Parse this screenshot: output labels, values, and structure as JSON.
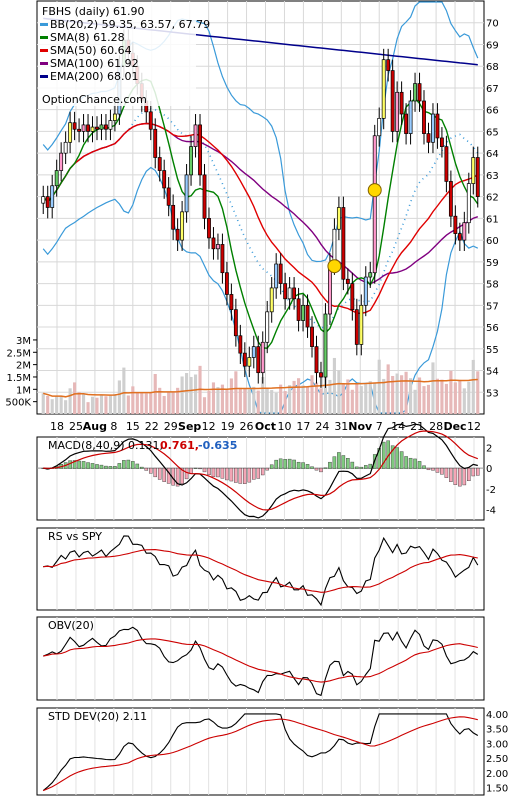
{
  "chart_data": {
    "type": "line",
    "ticker": "FBHS",
    "period": "daily",
    "last_price": "61.90",
    "watermark": "OptionChance.com",
    "main_legend": [
      {
        "label": "FBHS (daily) 61.90",
        "color": "#000000"
      },
      {
        "label": "BB(20,2) 59.35, 63.57, 67.79",
        "color": "#3a9ad9"
      },
      {
        "label": "SMA(8) 61.28",
        "color": "#008000"
      },
      {
        "label": "SMA(50) 60.64",
        "color": "#e00000"
      },
      {
        "label": "SMA(100) 61.92",
        "color": "#800080"
      },
      {
        "label": "EMA(200) 68.01",
        "color": "#00008b"
      }
    ],
    "y_ticks": [
      53,
      54,
      55,
      56,
      57,
      58,
      59,
      60,
      61,
      62,
      63,
      64,
      65,
      66,
      67,
      68,
      69,
      70
    ],
    "ylim": [
      52,
      71
    ],
    "x_ticks": [
      "18",
      "25",
      "Aug",
      "8",
      "15",
      "22",
      "29",
      "Sep",
      "12",
      "19",
      "26",
      "Oct",
      "10",
      "17",
      "24",
      "31",
      "Nov",
      "7",
      "14",
      "21",
      "28",
      "Dec",
      "12"
    ],
    "volume_ticks": [
      "3M",
      "2.5M",
      "2M",
      "1.5M",
      "1M",
      "500K"
    ],
    "vol_lim": [
      0,
      3200000
    ],
    "close": [
      62.0,
      61.5,
      62.5,
      63.2,
      64.0,
      64.5,
      65.4,
      65.1,
      65.0,
      65.3,
      65.0,
      65.2,
      65.1,
      65.3,
      65.1,
      65.5,
      65.8,
      68.0,
      69.2,
      68.6,
      68.0,
      67.2,
      66.4,
      65.9,
      65.1,
      63.8,
      63.2,
      62.4,
      61.6,
      60.5,
      60.0,
      61.3,
      63.0,
      64.3,
      65.3,
      63.0,
      61.0,
      60.1,
      59.6,
      59.8,
      58.5,
      57.5,
      56.8,
      55.6,
      54.8,
      54.2,
      54.6,
      55.1,
      53.9,
      55.3,
      56.7,
      57.8,
      58.9,
      58.0,
      57.3,
      57.8,
      57.3,
      56.3,
      57.0,
      56.0,
      55.1,
      53.9,
      53.7,
      56.6,
      58.9,
      60.5,
      61.5,
      58.2,
      58.0,
      56.8,
      55.2,
      57.0,
      58.3,
      58.5,
      64.8,
      65.6,
      68.3,
      67.8,
      65.0,
      66.8,
      65.8,
      64.9,
      66.4,
      67.2,
      66.4,
      64.9,
      64.5,
      65.8,
      64.7,
      64.3,
      62.7,
      61.1,
      60.3,
      60.0,
      60.8,
      62.6,
      63.8,
      62.0
    ],
    "volume": [
      0.84,
      0.73,
      0.6,
      0.73,
      0.72,
      0.56,
      1.04,
      1.28,
      0.89,
      0.81,
      0.48,
      0.7,
      0.66,
      0.78,
      0.72,
      0.74,
      0.81,
      1.36,
      1.88,
      0.75,
      1.12,
      0.86,
      0.87,
      0.83,
      0.88,
      1.62,
      1.06,
      0.73,
      0.89,
      0.87,
      1.06,
      1.52,
      1.66,
      1.5,
      1.6,
      1.95,
      0.68,
      0.93,
      1.28,
      1.09,
      1.19,
      0.97,
      1.44,
      1.73,
      1.06,
      1.02,
      0.99,
      1.1,
      0.95,
      1.5,
      1.07,
      0.97,
      0.86,
      1.19,
      0.93,
      1.17,
      1.34,
      1.45,
      1.16,
      1.12,
      1.57,
      1.27,
      1.04,
      2.02,
      1.38,
      2.27,
      1.77,
      1.22,
      1.4,
      0.98,
      1.22,
      1.13,
      1.21,
      1.33,
      1.27,
      2.2,
      1.42,
      2.01,
      1.54,
      1.64,
      1.57,
      1.71,
      1.45,
      0.98,
      1.48,
      1.13,
      1.18,
      2.09,
      1.43,
      1.39,
      1.22,
      1.75,
      1.28,
      1.38,
      1.04,
      1.31,
      2.19,
      1.73
    ],
    "indicators": [
      {
        "legend": "MACD(8,40,9) 0.131,",
        "values": [
          "0.761,",
          "-0.635"
        ],
        "value_colors": [
          "#cc0000",
          "#1f5fbf"
        ],
        "ticks": [
          "2",
          "0",
          "-2",
          "-4"
        ],
        "ylim": [
          -5,
          3
        ]
      },
      {
        "legend": "RS vs SPY",
        "ticks": [],
        "ylim": [
          0,
          1
        ]
      },
      {
        "legend": "OBV(20)",
        "ticks": [],
        "ylim": [
          0,
          1
        ]
      },
      {
        "legend": "STD DEV(20) 2.11",
        "ticks": [
          "4.00",
          "3.50",
          "3.00",
          "2.50",
          "2.00",
          "1.50"
        ],
        "ylim": [
          1.25,
          4.2
        ]
      }
    ]
  }
}
